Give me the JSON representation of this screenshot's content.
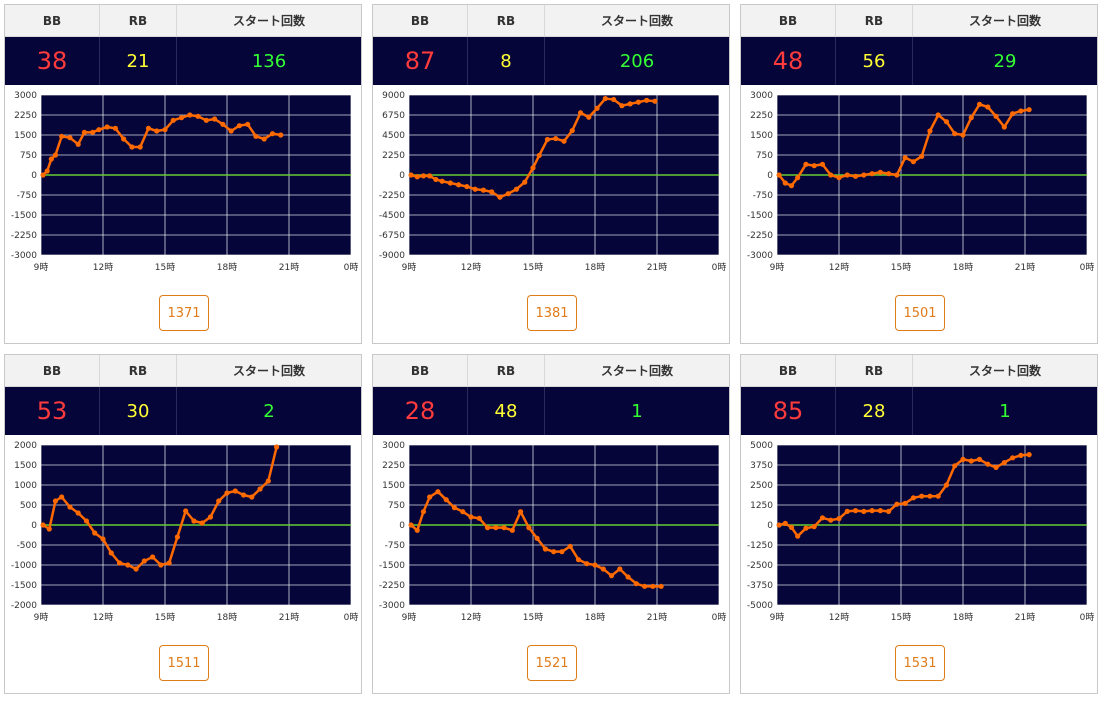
{
  "headers": {
    "bb": "BB",
    "rb": "RB",
    "start": "スタート回数"
  },
  "x_ticks": [
    "9時",
    "12時",
    "15時",
    "18時",
    "21時",
    "0時"
  ],
  "colors": {
    "bb": "#ff3b3b",
    "rb": "#ffff33",
    "start": "#33ff33",
    "line": "#ff6a00",
    "zero": "#66cc33",
    "bg": "#05053a",
    "button": "#e07b1a"
  },
  "panels": [
    {
      "bb": "38",
      "rb": "21",
      "start": "136",
      "button": "1371",
      "y_ticks": [
        "3000",
        "2250",
        "1500",
        "750",
        "0",
        "-750",
        "-1500",
        "-2250",
        "-3000"
      ],
      "chart_data": {
        "type": "line",
        "xlim": [
          9,
          24
        ],
        "ylim": [
          -3000,
          3000
        ],
        "x": [
          9.1,
          9.3,
          9.5,
          9.7,
          10,
          10.4,
          10.8,
          11.1,
          11.5,
          11.8,
          12.2,
          12.6,
          13,
          13.4,
          13.8,
          14.2,
          14.6,
          15,
          15.4,
          15.8,
          16.2,
          16.6,
          17,
          17.4,
          17.8,
          18.2,
          18.6,
          19,
          19.4,
          19.8,
          20.2,
          20.6
        ],
        "y": [
          0,
          150,
          600,
          750,
          1450,
          1400,
          1150,
          1600,
          1600,
          1700,
          1800,
          1750,
          1350,
          1050,
          1050,
          1750,
          1650,
          1700,
          2050,
          2150,
          2250,
          2200,
          2050,
          2100,
          1900,
          1650,
          1850,
          1900,
          1450,
          1350,
          1550,
          1500
        ]
      }
    },
    {
      "bb": "87",
      "rb": "8",
      "start": "206",
      "button": "1381",
      "y_ticks": [
        "9000",
        "6750",
        "4500",
        "2250",
        "0",
        "-2250",
        "-4500",
        "-6750",
        "-9000"
      ],
      "chart_data": {
        "type": "line",
        "xlim": [
          9,
          24
        ],
        "ylim": [
          -9000,
          9000
        ],
        "x": [
          9.1,
          9.4,
          9.7,
          10,
          10.3,
          10.6,
          11,
          11.4,
          11.8,
          12.2,
          12.6,
          13,
          13.4,
          13.8,
          14.2,
          14.6,
          15,
          15.3,
          15.7,
          16.1,
          16.5,
          16.9,
          17.3,
          17.7,
          18.1,
          18.5,
          18.9,
          19.3,
          19.7,
          20.1,
          20.5,
          20.9
        ],
        "y": [
          0,
          -200,
          -100,
          -100,
          -500,
          -700,
          -900,
          -1100,
          -1300,
          -1600,
          -1700,
          -1900,
          -2500,
          -2100,
          -1600,
          -800,
          800,
          2200,
          4000,
          4100,
          3800,
          5000,
          7000,
          6500,
          7500,
          8600,
          8500,
          7800,
          8000,
          8200,
          8400,
          8300
        ]
      }
    },
    {
      "bb": "48",
      "rb": "56",
      "start": "29",
      "button": "1501",
      "y_ticks": [
        "3000",
        "2250",
        "1500",
        "750",
        "0",
        "-750",
        "-1500",
        "-2250",
        "-3000"
      ],
      "chart_data": {
        "type": "line",
        "xlim": [
          9,
          24
        ],
        "ylim": [
          -3000,
          3000
        ],
        "x": [
          9.1,
          9.4,
          9.7,
          10,
          10.4,
          10.8,
          11.2,
          11.6,
          12,
          12.4,
          12.8,
          13.2,
          13.6,
          14,
          14.4,
          14.8,
          15.2,
          15.6,
          16,
          16.4,
          16.8,
          17.2,
          17.6,
          18,
          18.4,
          18.8,
          19.2,
          19.6,
          20,
          20.4,
          20.8,
          21.2
        ],
        "y": [
          0,
          -300,
          -400,
          -100,
          400,
          350,
          400,
          0,
          -100,
          0,
          -50,
          0,
          50,
          100,
          50,
          0,
          650,
          500,
          700,
          1650,
          2250,
          2000,
          1550,
          1500,
          2150,
          2650,
          2550,
          2200,
          1800,
          2300,
          2400,
          2450
        ]
      }
    },
    {
      "bb": "53",
      "rb": "30",
      "start": "2",
      "button": "1511",
      "y_ticks": [
        "2000",
        "1500",
        "1000",
        "500",
        "0",
        "-500",
        "-1000",
        "-1500",
        "-2000"
      ],
      "chart_data": {
        "type": "line",
        "xlim": [
          9,
          24
        ],
        "ylim": [
          -2000,
          2000
        ],
        "x": [
          9.1,
          9.4,
          9.7,
          10,
          10.4,
          10.8,
          11.2,
          11.6,
          12,
          12.4,
          12.8,
          13.2,
          13.6,
          14,
          14.4,
          14.8,
          15.2,
          15.6,
          16,
          16.4,
          16.8,
          17.2,
          17.6,
          18,
          18.4,
          18.8,
          19.2,
          19.6,
          20,
          20.4
        ],
        "y": [
          0,
          -100,
          600,
          700,
          450,
          300,
          100,
          -200,
          -350,
          -700,
          -950,
          -1000,
          -1100,
          -900,
          -800,
          -1000,
          -950,
          -300,
          350,
          100,
          50,
          200,
          600,
          800,
          850,
          750,
          700,
          900,
          1100,
          1950
        ]
      }
    },
    {
      "bb": "28",
      "rb": "48",
      "start": "1",
      "button": "1521",
      "y_ticks": [
        "3000",
        "2250",
        "1500",
        "750",
        "0",
        "-750",
        "-1500",
        "-2250",
        "-3000"
      ],
      "chart_data": {
        "type": "line",
        "xlim": [
          9,
          24
        ],
        "ylim": [
          -3000,
          3000
        ],
        "x": [
          9.1,
          9.4,
          9.7,
          10,
          10.4,
          10.8,
          11.2,
          11.6,
          12,
          12.4,
          12.8,
          13.2,
          13.6,
          14,
          14.4,
          14.8,
          15.2,
          15.6,
          16,
          16.4,
          16.8,
          17.2,
          17.6,
          18,
          18.4,
          18.8,
          19.2,
          19.6,
          20,
          20.4,
          20.8,
          21.2
        ],
        "y": [
          0,
          -200,
          500,
          1050,
          1250,
          950,
          650,
          500,
          300,
          250,
          -100,
          -100,
          -100,
          -200,
          500,
          -100,
          -500,
          -900,
          -1000,
          -1000,
          -800,
          -1300,
          -1450,
          -1500,
          -1650,
          -1900,
          -1650,
          -1950,
          -2200,
          -2300,
          -2300,
          -2300
        ]
      }
    },
    {
      "bb": "85",
      "rb": "28",
      "start": "1",
      "button": "1531",
      "y_ticks": [
        "5000",
        "3750",
        "2500",
        "1250",
        "0",
        "-1250",
        "-2500",
        "-3750",
        "-5000"
      ],
      "chart_data": {
        "type": "line",
        "xlim": [
          9,
          24
        ],
        "ylim": [
          -5000,
          5000
        ],
        "x": [
          9.1,
          9.4,
          9.7,
          10,
          10.4,
          10.8,
          11.2,
          11.6,
          12,
          12.4,
          12.8,
          13.2,
          13.6,
          14,
          14.4,
          14.8,
          15.2,
          15.6,
          16,
          16.4,
          16.8,
          17.2,
          17.6,
          18,
          18.4,
          18.8,
          19.2,
          19.6,
          20,
          20.4,
          20.8,
          21.2
        ],
        "y": [
          0,
          100,
          -150,
          -700,
          -200,
          -100,
          450,
          300,
          400,
          850,
          900,
          850,
          900,
          900,
          850,
          1300,
          1350,
          1700,
          1800,
          1800,
          1800,
          2500,
          3700,
          4100,
          4000,
          4100,
          3800,
          3600,
          3900,
          4200,
          4350,
          4400
        ]
      }
    }
  ]
}
